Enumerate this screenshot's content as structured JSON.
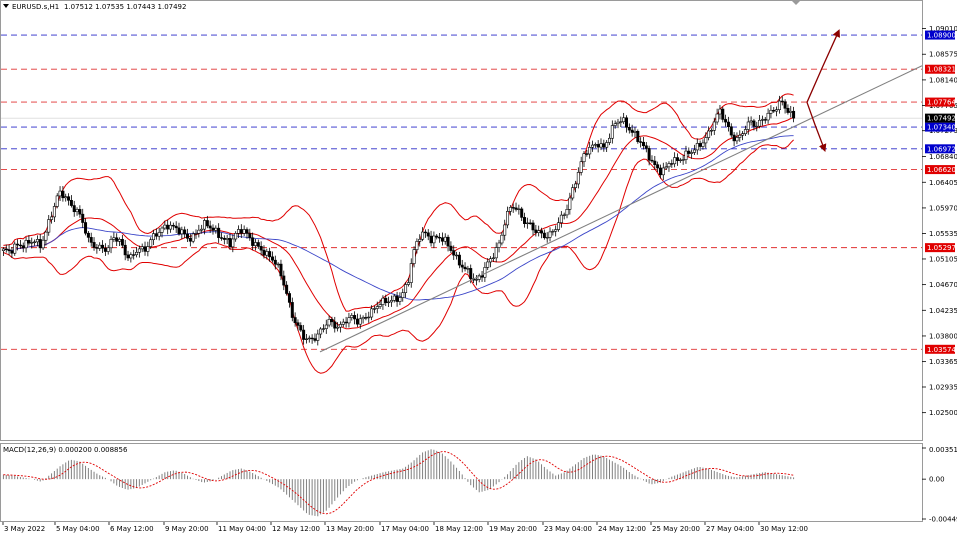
{
  "header": {
    "symbol": "EURUSD.s,H1",
    "ohlc": "1.07512 1.07535 1.07443 1.07492",
    "dropdown_icon": "triangle-down-icon"
  },
  "macd_header": "MACD(12,26,9) 0.000200 0.008856",
  "colors": {
    "background": "#ffffff",
    "plot_bg": "#f4f7fd",
    "candles": "#000000",
    "bollinger": "#e00000",
    "moving_average": "#3c46c8",
    "trendline": "#808080",
    "resistance_line": "#e03030",
    "support_line": "#2828c8",
    "price_tag_red": "#e00000",
    "price_tag_blue": "#0000cc",
    "price_tag_current": "#000000",
    "arrow": "#8b0000",
    "macd_hist": "#808080",
    "macd_signal": "#e00000"
  },
  "chart_data": {
    "type": "candlestick",
    "symbol": "EURUSD",
    "timeframe": "H1",
    "y_ticks": [
      "1.09010",
      "1.08575",
      "1.08140",
      "1.07705",
      "1.07279",
      "1.06840",
      "1.06405",
      "1.05970",
      "1.05535",
      "1.05105",
      "1.04670",
      "1.04235",
      "1.03800",
      "1.03365",
      "1.02935",
      "1.02500"
    ],
    "ylim": [
      1.0224,
      1.0924
    ],
    "x_ticks": [
      "3 May 2022",
      "5 May 04:00",
      "6 May 12:00",
      "9 May 20:00",
      "11 May 04:00",
      "12 May 12:00",
      "13 May 20:00",
      "17 May 04:00",
      "18 May 12:00",
      "19 May 20:00",
      "23 May 04:00",
      "24 May 12:00",
      "25 May 20:00",
      "27 May 04:00",
      "30 May 12:00"
    ],
    "current_price": "1.07492",
    "horizontal_levels": [
      {
        "value": 1.089,
        "label": "1.08900",
        "style": "blue-dashed"
      },
      {
        "value": 1.08321,
        "label": "1.08321",
        "style": "red-dashed"
      },
      {
        "value": 1.07764,
        "label": "1.07764",
        "style": "red-dashed"
      },
      {
        "value": 1.0734,
        "label": "1.07340",
        "style": "blue-dashed"
      },
      {
        "value": 1.06972,
        "label": "1.06972",
        "style": "blue-dashed"
      },
      {
        "value": 1.0662,
        "label": "1.06620",
        "style": "red-dashed"
      },
      {
        "value": 1.05297,
        "label": "1.05297",
        "style": "red-dashed"
      },
      {
        "value": 1.03574,
        "label": "1.03574",
        "style": "red-dashed"
      }
    ],
    "close_path": [
      1.0525,
      1.052,
      1.053,
      1.0535,
      1.054,
      1.0545,
      1.053,
      1.0555,
      1.059,
      1.0625,
      1.0622,
      1.06,
      1.059,
      1.057,
      1.054,
      1.0535,
      1.053,
      1.0525,
      1.0545,
      1.054,
      1.052,
      1.0515,
      1.053,
      1.052,
      1.054,
      1.0555,
      1.0565,
      1.057,
      1.056,
      1.0555,
      1.0545,
      1.055,
      1.0565,
      1.057,
      1.056,
      1.055,
      1.0545,
      1.054,
      1.0555,
      1.056,
      1.0545,
      1.0535,
      1.053,
      1.052,
      1.051,
      1.049,
      1.046,
      1.042,
      1.04,
      1.038,
      1.037,
      1.0375,
      1.039,
      1.041,
      1.04,
      1.0395,
      1.0405,
      1.041,
      1.0405,
      1.0415,
      1.042,
      1.043,
      1.0435,
      1.044,
      1.0445,
      1.045,
      1.047,
      1.052,
      1.055,
      1.0555,
      1.0545,
      1.055,
      1.054,
      1.0525,
      1.051,
      1.05,
      1.049,
      1.047,
      1.048,
      1.05,
      1.052,
      1.054,
      1.058,
      1.06,
      1.059,
      1.0575,
      1.057,
      1.056,
      1.055,
      1.0545,
      1.056,
      1.058,
      1.06,
      1.063,
      1.066,
      1.069,
      1.07,
      1.071,
      1.07,
      1.072,
      1.074,
      1.0745,
      1.0735,
      1.0725,
      1.071,
      1.069,
      1.067,
      1.066,
      1.0665,
      1.068,
      1.0675,
      1.068,
      1.069,
      1.07,
      1.071,
      1.072,
      1.074,
      1.076,
      1.074,
      1.072,
      1.0715,
      1.073,
      1.074,
      1.0735,
      1.075,
      1.076,
      1.0765,
      1.0775,
      1.076,
      1.07492
    ],
    "macd_label": "MACD(12,26,9)",
    "macd_main": "0.000200",
    "macd_signal": "0.008856",
    "macd_y_ticks": [
      "0.003513",
      "0.00",
      "-0.004493"
    ],
    "macd_hist_path": [
      0.0005,
      0.0004,
      0.0002,
      0.0,
      -0.0003,
      0.0006,
      0.0015,
      0.0022,
      0.002,
      0.0012,
      0.0005,
      0.0,
      -0.0008,
      -0.0012,
      -0.001,
      -0.0004,
      0.0002,
      0.0008,
      0.001,
      0.0006,
      0.0,
      -0.0004,
      -0.0002,
      0.0004,
      0.001,
      0.0012,
      0.0008,
      0.0002,
      -0.0004,
      -0.001,
      -0.002,
      -0.003,
      -0.004,
      -0.0042,
      -0.0035,
      -0.0022,
      -0.001,
      -0.0002,
      0.0002,
      0.0005,
      0.0008,
      0.001,
      0.0012,
      0.002,
      0.003,
      0.0034,
      0.003,
      0.002,
      0.0008,
      -0.0006,
      -0.0015,
      -0.0012,
      -0.0004,
      0.0006,
      0.0018,
      0.0026,
      0.0022,
      0.0012,
      0.0004,
      0.0008,
      0.0016,
      0.0024,
      0.0028,
      0.0026,
      0.002,
      0.0014,
      0.0006,
      0.0,
      -0.0006,
      -0.0004,
      0.0002,
      0.0006,
      0.001,
      0.0014,
      0.0012,
      0.0008,
      0.0004,
      0.0002,
      0.0004,
      0.0006,
      0.0008,
      0.0006,
      0.0004,
      0.0002
    ],
    "annotations": [
      "ascending gray trendline",
      "forecast arrow up to 1.08900",
      "forecast arrow down toward 1.06972"
    ]
  }
}
